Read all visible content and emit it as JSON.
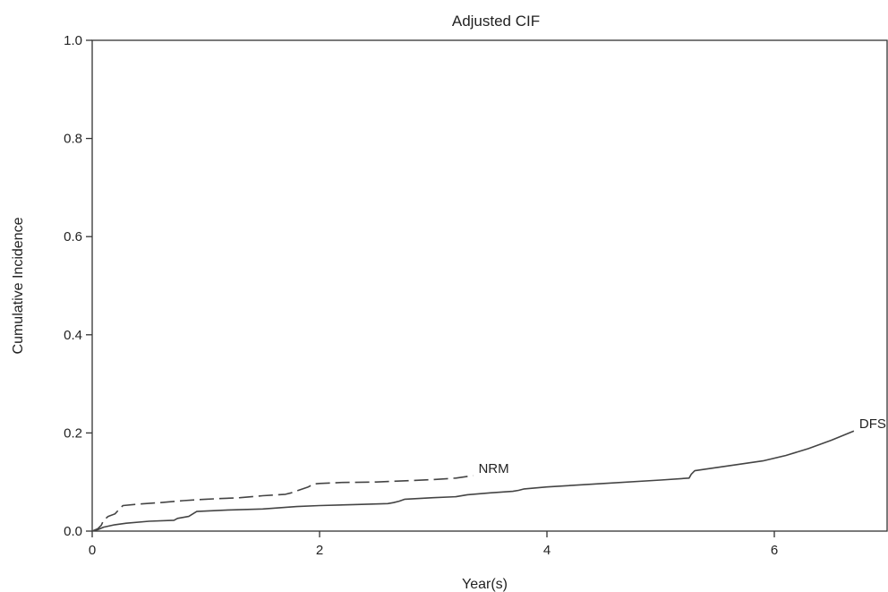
{
  "chart_data": {
    "type": "line",
    "title": "Adjusted CIF",
    "xlabel": "Year(s)",
    "ylabel": "Cumulative Incidence",
    "xlim": [
      0,
      7
    ],
    "ylim": [
      0,
      1.0
    ],
    "xticks": [
      0,
      2,
      4,
      6
    ],
    "xtick_labels": [
      "0",
      "2",
      "4",
      "6"
    ],
    "yticks": [
      0,
      0.2,
      0.4,
      0.6,
      0.8,
      1.0
    ],
    "ytick_labels": [
      "0.0",
      "0.2",
      "0.4",
      "0.6",
      "0.8",
      "1.0"
    ],
    "grid": false,
    "series": [
      {
        "name": "DFS",
        "label": "DFS",
        "style": "solid",
        "color": "#444444",
        "x": [
          0,
          0.05,
          0.1,
          0.2,
          0.3,
          0.5,
          0.72,
          0.75,
          0.85,
          0.92,
          1.2,
          1.5,
          1.8,
          2.0,
          2.3,
          2.6,
          2.65,
          2.7,
          2.75,
          3.0,
          3.2,
          3.3,
          3.5,
          3.7,
          3.75,
          3.8,
          4.0,
          4.5,
          5.0,
          5.25,
          5.27,
          5.3,
          5.6,
          5.9,
          6.1,
          6.3,
          6.5,
          6.7
        ],
        "y": [
          0,
          0.003,
          0.008,
          0.013,
          0.016,
          0.02,
          0.022,
          0.026,
          0.03,
          0.04,
          0.043,
          0.045,
          0.05,
          0.052,
          0.054,
          0.056,
          0.058,
          0.061,
          0.065,
          0.068,
          0.07,
          0.074,
          0.078,
          0.081,
          0.083,
          0.086,
          0.09,
          0.097,
          0.104,
          0.108,
          0.116,
          0.123,
          0.133,
          0.143,
          0.154,
          0.168,
          0.185,
          0.204
        ]
      },
      {
        "name": "NRM",
        "label": "NRM",
        "style": "dashed",
        "color": "#444444",
        "x": [
          0,
          0.05,
          0.08,
          0.1,
          0.14,
          0.2,
          0.24,
          0.27,
          0.4,
          0.6,
          0.8,
          1.0,
          1.3,
          1.5,
          1.7,
          1.75,
          1.8,
          1.9,
          1.95,
          2.0,
          2.2,
          2.5,
          2.8,
          3.0,
          3.2,
          3.35
        ],
        "y": [
          0,
          0.005,
          0.012,
          0.022,
          0.03,
          0.035,
          0.045,
          0.052,
          0.055,
          0.058,
          0.062,
          0.065,
          0.068,
          0.072,
          0.075,
          0.078,
          0.082,
          0.09,
          0.096,
          0.097,
          0.099,
          0.1,
          0.103,
          0.105,
          0.108,
          0.113
        ]
      }
    ]
  }
}
